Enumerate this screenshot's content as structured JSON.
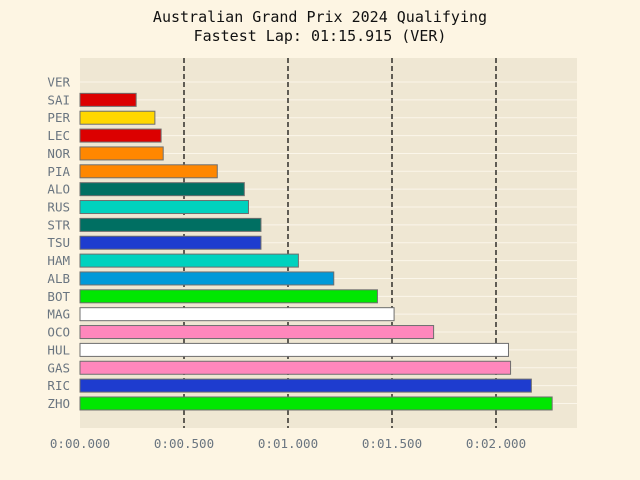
{
  "chart_data": {
    "type": "bar",
    "orientation": "horizontal",
    "title": "Australian Grand Prix 2024 Qualifying",
    "subtitle": "Fastest Lap: 01:15.915 (VER)",
    "xlabel": "",
    "ylabel": "",
    "xlim": [
      0,
      2.4
    ],
    "xticks": [
      0,
      0.5,
      1.0,
      1.5,
      2.0
    ],
    "xtick_labels": [
      "0:00.000",
      "0:00.500",
      "0:01.000",
      "0:01.500",
      "0:02.000"
    ],
    "grid": "vertical dashed lines at ticks",
    "categories": [
      "VER",
      "SAI",
      "PER",
      "LEC",
      "NOR",
      "PIA",
      "ALO",
      "RUS",
      "STR",
      "TSU",
      "HAM",
      "ALB",
      "BOT",
      "MAG",
      "OCO",
      "HUL",
      "GAS",
      "RIC",
      "ZHO"
    ],
    "values": [
      0.0,
      0.27,
      0.36,
      0.39,
      0.4,
      0.66,
      0.79,
      0.81,
      0.87,
      0.87,
      1.05,
      1.22,
      1.43,
      1.51,
      1.7,
      2.06,
      2.07,
      2.17,
      2.27
    ],
    "colors": [
      "#1e41ff",
      "#dc0000",
      "#ffd700",
      "#dc0000",
      "#ff8700",
      "#ff8700",
      "#006f62",
      "#00d2be",
      "#006f62",
      "#1e3ccf",
      "#00d2be",
      "#0099d8",
      "#00e701",
      "#ffffff",
      "#ff87bc",
      "#ffffff",
      "#ff87bc",
      "#1e3ccf",
      "#00e701"
    ]
  }
}
